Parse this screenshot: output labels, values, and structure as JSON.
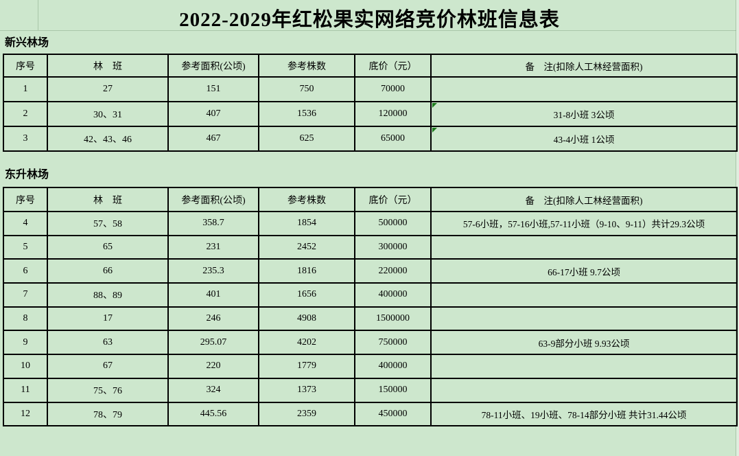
{
  "title": "2022-2029年红松果实网络竞价林班信息表",
  "colors": {
    "background": "#cde7cd",
    "grid_border": "#000000",
    "text": "#000000",
    "error_flag_green": "#1e7d1e",
    "edge_strip": "#dfeede"
  },
  "column_keys": [
    "no",
    "block",
    "area",
    "trees",
    "price",
    "remark"
  ],
  "sections": [
    {
      "name": "新兴林场",
      "headers": [
        "序号",
        "林　班",
        "参考面积(公顷)",
        "参考株数",
        "底价（元）",
        "备　注(扣除人工林经营面积)"
      ],
      "rows": [
        {
          "no": "1",
          "block": "27",
          "area": "151",
          "trees": "750",
          "price": "70000",
          "remark": "",
          "error_flag": false
        },
        {
          "no": "2",
          "block": "30、31",
          "area": "407",
          "trees": "1536",
          "price": "120000",
          "remark": "31-8小班  3公顷",
          "error_flag": true
        },
        {
          "no": "3",
          "block": "42、43、46",
          "area": "467",
          "trees": "625",
          "price": "65000",
          "remark": "43-4小班  1公顷",
          "error_flag": true
        }
      ]
    },
    {
      "name": "东升林场",
      "headers": [
        "序号",
        "林　班",
        "参考面积(公顷)",
        "参考株数",
        "底价（元）",
        "备　注(扣除人工林经营面积)"
      ],
      "rows": [
        {
          "no": "4",
          "block": "57、58",
          "area": "358.7",
          "trees": "1854",
          "price": "500000",
          "remark": "57-6小班，57-16小班,57-11小班（9-10、9-11）共计29.3公顷",
          "error_flag": false
        },
        {
          "no": "5",
          "block": "65",
          "area": "231",
          "trees": "2452",
          "price": "300000",
          "remark": "",
          "error_flag": false
        },
        {
          "no": "6",
          "block": "66",
          "area": "235.3",
          "trees": "1816",
          "price": "220000",
          "remark": "66-17小班  9.7公顷",
          "error_flag": false
        },
        {
          "no": "7",
          "block": "88、89",
          "area": "401",
          "trees": "1656",
          "price": "400000",
          "remark": "",
          "error_flag": false
        },
        {
          "no": "8",
          "block": "17",
          "area": "246",
          "trees": "4908",
          "price": "1500000",
          "remark": "",
          "error_flag": false
        },
        {
          "no": "9",
          "block": "63",
          "area": "295.07",
          "trees": "4202",
          "price": "750000",
          "remark": "63-9部分小班  9.93公顷",
          "error_flag": false
        },
        {
          "no": "10",
          "block": "67",
          "area": "220",
          "trees": "1779",
          "price": "400000",
          "remark": "",
          "error_flag": false
        },
        {
          "no": "11",
          "block": "75、76",
          "area": "324",
          "trees": "1373",
          "price": "150000",
          "remark": "",
          "error_flag": false
        },
        {
          "no": "12",
          "block": "78、79",
          "area": "445.56",
          "trees": "2359",
          "price": "450000",
          "remark": "78-11小班、19小班、78-14部分小班  共计31.44公顷",
          "error_flag": false
        }
      ]
    }
  ]
}
